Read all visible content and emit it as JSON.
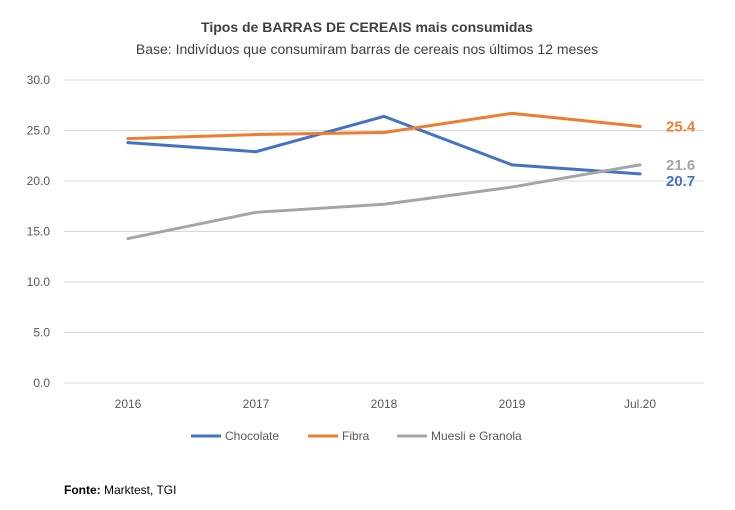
{
  "chart_data": {
    "type": "line",
    "title": "Tipos de BARRAS DE CEREAIS mais consumidas",
    "subtitle": "Base: Indivíduos que consumiram barras de cereais nos últimos 12 meses",
    "categories": [
      "2016",
      "2017",
      "2018",
      "2019",
      "Jul.20"
    ],
    "ylim": [
      0,
      30
    ],
    "yticks": [
      "0.0",
      "5.0",
      "10.0",
      "15.0",
      "20.0",
      "25.0",
      "30.0"
    ],
    "ytick_values": [
      0,
      5,
      10,
      15,
      20,
      25,
      30
    ],
    "grid": true,
    "legend_position": "bottom",
    "series": [
      {
        "name": "Chocolate",
        "color": "#4472c4",
        "values": [
          23.8,
          22.9,
          26.4,
          21.6,
          20.7
        ],
        "end_label": "20.7"
      },
      {
        "name": "Fibra",
        "color": "#ed7d31",
        "values": [
          24.2,
          24.6,
          24.8,
          26.7,
          25.4
        ],
        "end_label": "25.4"
      },
      {
        "name": "Muesli e Granola",
        "color": "#a5a5a5",
        "values": [
          14.3,
          16.9,
          17.7,
          19.4,
          21.6
        ],
        "end_label": "21.6"
      }
    ],
    "source_label": "Fonte:",
    "source_text": " Marktest, TGI"
  }
}
